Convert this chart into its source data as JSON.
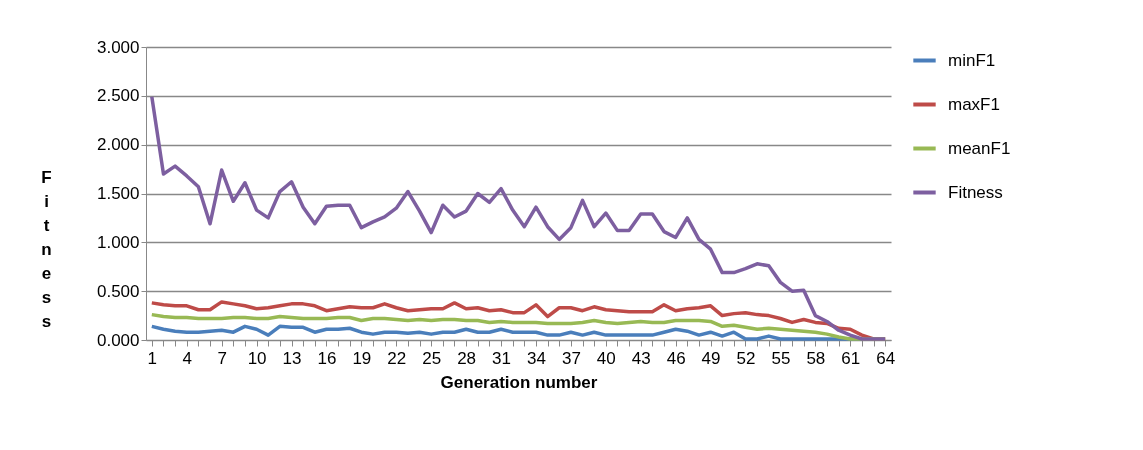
{
  "chart_data": {
    "type": "line",
    "xlabel": "Generation number",
    "ylabel": "Fitness",
    "categories": [
      "1",
      null,
      null,
      "4",
      null,
      null,
      "7",
      null,
      null,
      "10",
      null,
      null,
      "13",
      null,
      null,
      "16",
      null,
      null,
      "19",
      null,
      null,
      "22",
      null,
      null,
      "25",
      null,
      null,
      "28",
      null,
      null,
      "31",
      null,
      null,
      "34",
      null,
      null,
      "37",
      null,
      null,
      "40",
      null,
      null,
      "43",
      null,
      null,
      "46",
      null,
      null,
      "49",
      null,
      null,
      "52",
      null,
      null,
      "55",
      null,
      null,
      "58",
      null,
      null,
      "61",
      null,
      null,
      "64"
    ],
    "series": [
      {
        "name": "minF1",
        "color": "#4a7ebb",
        "values": [
          0.14,
          0.11,
          0.09,
          0.08,
          0.08,
          0.09,
          0.1,
          0.08,
          0.14,
          0.11,
          0.05,
          0.14,
          0.13,
          0.13,
          0.08,
          0.11,
          0.11,
          0.12,
          0.08,
          0.06,
          0.08,
          0.08,
          0.07,
          0.08,
          0.06,
          0.08,
          0.08,
          0.11,
          0.08,
          0.08,
          0.11,
          0.08,
          0.08,
          0.08,
          0.05,
          0.05,
          0.08,
          0.05,
          0.08,
          0.05,
          0.05,
          0.05,
          0.05,
          0.05,
          0.08,
          0.11,
          0.09,
          0.05,
          0.08,
          0.04,
          0.08,
          0.01,
          0.01,
          0.04,
          0.01,
          0.01,
          0.01,
          0.01,
          0.01,
          0.01,
          0.01,
          0.01,
          null,
          null
        ]
      },
      {
        "name": "maxF1",
        "color": "#be4b48",
        "values": [
          0.38,
          0.36,
          0.35,
          0.35,
          0.31,
          0.31,
          0.39,
          0.37,
          0.35,
          0.32,
          0.33,
          0.35,
          0.37,
          0.37,
          0.35,
          0.3,
          0.32,
          0.34,
          0.33,
          0.33,
          0.37,
          0.33,
          0.3,
          0.31,
          0.32,
          0.32,
          0.38,
          0.32,
          0.33,
          0.3,
          0.31,
          0.28,
          0.28,
          0.36,
          0.24,
          0.33,
          0.33,
          0.3,
          0.34,
          0.31,
          0.3,
          0.29,
          0.29,
          0.29,
          0.36,
          0.3,
          0.32,
          0.33,
          0.35,
          0.25,
          0.27,
          0.28,
          0.26,
          0.25,
          0.22,
          0.18,
          0.21,
          0.18,
          0.17,
          0.12,
          0.11,
          0.05,
          0.01,
          0.01
        ]
      },
      {
        "name": "meanF1",
        "color": "#98b954",
        "values": [
          0.26,
          0.24,
          0.23,
          0.23,
          0.22,
          0.22,
          0.22,
          0.23,
          0.23,
          0.22,
          0.22,
          0.24,
          0.23,
          0.22,
          0.22,
          0.22,
          0.23,
          0.23,
          0.2,
          0.22,
          0.22,
          0.21,
          0.2,
          0.21,
          0.2,
          0.21,
          0.21,
          0.2,
          0.2,
          0.18,
          0.19,
          0.18,
          0.18,
          0.18,
          0.17,
          0.17,
          0.17,
          0.18,
          0.2,
          0.18,
          0.17,
          0.18,
          0.19,
          0.18,
          0.18,
          0.2,
          0.2,
          0.2,
          0.19,
          0.14,
          0.15,
          0.13,
          0.11,
          0.12,
          0.11,
          0.1,
          0.09,
          0.08,
          0.06,
          0.03,
          0.01,
          0.01,
          0.01,
          0.01
        ]
      },
      {
        "name": "Fitness",
        "color": "#7d5fa0",
        "values": [
          2.49,
          1.7,
          1.78,
          1.68,
          1.57,
          1.19,
          1.74,
          1.42,
          1.61,
          1.33,
          1.25,
          1.52,
          1.62,
          1.36,
          1.19,
          1.37,
          1.38,
          1.38,
          1.15,
          1.21,
          1.26,
          1.35,
          1.52,
          1.32,
          1.1,
          1.38,
          1.26,
          1.32,
          1.5,
          1.41,
          1.55,
          1.33,
          1.16,
          1.36,
          1.16,
          1.03,
          1.15,
          1.43,
          1.16,
          1.3,
          1.12,
          1.12,
          1.29,
          1.29,
          1.11,
          1.05,
          1.25,
          1.03,
          0.93,
          0.69,
          0.69,
          0.73,
          0.78,
          0.76,
          0.59,
          0.5,
          0.51,
          0.25,
          0.19,
          0.1,
          0.05,
          0.01,
          0.01,
          0.01
        ]
      }
    ],
    "ylim": [
      0,
      3
    ],
    "yticks": [
      {
        "value": 0,
        "label": "0.000"
      },
      {
        "value": 0.5,
        "label": "0.500"
      },
      {
        "value": 1,
        "label": "1.000"
      },
      {
        "value": 1.5,
        "label": "1.500"
      },
      {
        "value": 2,
        "label": "2.000"
      },
      {
        "value": 2.5,
        "label": "2.500"
      },
      {
        "value": 3,
        "label": "3.000"
      }
    ],
    "grid": "y",
    "legend": "right",
    "line_style": "solid"
  }
}
